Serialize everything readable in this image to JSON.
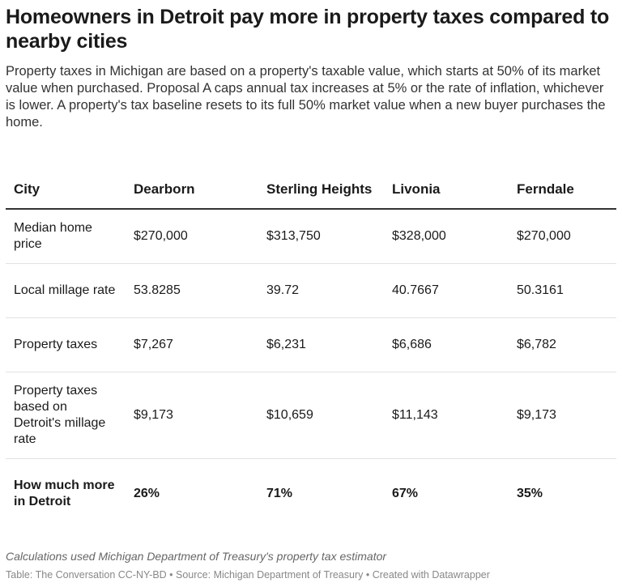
{
  "header": {
    "title": "Homeowners in Detroit pay more in property taxes compared to nearby cities",
    "description": "Property taxes in Michigan are based on a property's taxable value, which starts at 50% of its market value when purchased. Proposal A caps annual tax increases at 5% or the rate of inflation, whichever is lower. A property's tax baseline resets to its full 50% market value when a new buyer purchases the home."
  },
  "chart_data": {
    "type": "table",
    "columns": [
      "City",
      "Dearborn",
      "Sterling Heights",
      "Livonia",
      "Ferndale"
    ],
    "rows": [
      [
        "Median home price",
        "$270,000",
        "$313,750",
        "$328,000",
        "$270,000"
      ],
      [
        "Local millage rate",
        "53.8285",
        "39.72",
        "40.7667",
        "50.3161"
      ],
      [
        "Property taxes",
        "$7,267",
        "$6,231",
        "$6,686",
        "$6,782"
      ],
      [
        "Property taxes based on Detroit's millage rate",
        "$9,173",
        "$10,659",
        "$11,143",
        "$9,173"
      ],
      [
        "How much more in Detroit",
        "26%",
        "71%",
        "67%",
        "35%"
      ]
    ]
  },
  "footer": {
    "note": "Calculations used Michigan Department of Treasury's property tax estimator",
    "source": "Table: The Conversation CC-NY-BD • Source: Michigan Department of Treasury • Created with Datawrapper"
  }
}
